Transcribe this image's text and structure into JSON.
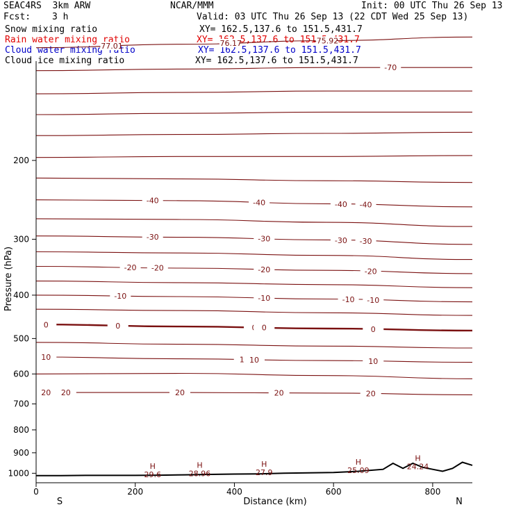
{
  "header": {
    "model": "SEAC4RS  3km ARW",
    "center": "NCAR/MMM",
    "init": "Init: 00 UTC Thu 26 Sep 13",
    "fcst_label": "Fcst:",
    "fcst_value": "3 h",
    "valid": "Valid: 03 UTC Thu 26 Sep 13 (22 CDT Wed 25 Sep 13)"
  },
  "fields": [
    {
      "name": "Snow mixing ratio",
      "xy": "XY= 162.5,137.6 to 151.5,431.7",
      "color": "#000000"
    },
    {
      "name": "Rain water mixing ratio",
      "xy": "XY= 162.5,137.6 to 151.5,431.7",
      "color": "#e00000"
    },
    {
      "name": "Cloud water mixing ratio",
      "xy": "XY= 162.5,137.6 to 151.5,431.7",
      "color": "#0000c8"
    },
    {
      "name": "Cloud ice mixing ratio",
      "xy": "XY= 162.5,137.6 to 151.5,431.7",
      "color": "#000000"
    }
  ],
  "chart_data": {
    "type": "line",
    "xlabel": "Distance (km)",
    "ylabel": "Pressure (hPa)",
    "xlim": [
      0,
      880
    ],
    "ylim": [
      1050,
      100
    ],
    "y_scale": "log-pressure",
    "x_ticks": [
      0,
      200,
      400,
      600,
      800
    ],
    "y_ticks": [
      100,
      200,
      300,
      400,
      500,
      600,
      700,
      800,
      900,
      1000
    ],
    "x_end_labels": {
      "left": "S",
      "right": "N"
    },
    "contour_color": "#7a1010",
    "isotherms": [
      {
        "level": -77.01,
        "pressure": [
          112,
          110,
          108,
          106
        ],
        "labels": [
          {
            "text": "-77.01",
            "x": 150
          },
          {
            "text": "-76.17",
            "x": 390
          },
          {
            "text": "-75.92",
            "x": 585
          }
        ]
      },
      {
        "level": -70,
        "pressure": [
          126,
          125,
          124,
          124
        ],
        "labels": [
          {
            "text": "-70",
            "x": 715
          }
        ]
      },
      {
        "level": -65,
        "pressure": [
          142,
          141,
          140,
          140
        ],
        "labels": []
      },
      {
        "level": -60,
        "pressure": [
          158,
          157,
          156,
          156
        ],
        "labels": []
      },
      {
        "level": -55,
        "pressure": [
          176,
          175,
          174,
          173
        ],
        "labels": []
      },
      {
        "level": -50,
        "pressure": [
          197,
          196,
          196,
          195
        ],
        "labels": []
      },
      {
        "level": -45,
        "pressure": [
          219,
          220,
          222,
          224
        ],
        "labels": []
      },
      {
        "level": -40,
        "pressure": [
          245,
          246,
          250,
          254
        ],
        "labels": [
          {
            "text": "-40",
            "x": 235
          },
          {
            "text": "-40",
            "x": 450
          },
          {
            "text": "-40",
            "x": 615
          },
          {
            "text": "-40",
            "x": 665
          }
        ]
      },
      {
        "level": -35,
        "pressure": [
          270,
          271,
          275,
          281
        ],
        "labels": []
      },
      {
        "level": -30,
        "pressure": [
          295,
          297,
          301,
          308
        ],
        "labels": [
          {
            "text": "-30",
            "x": 235
          },
          {
            "text": "-30",
            "x": 460
          },
          {
            "text": "-30",
            "x": 615
          },
          {
            "text": "-30",
            "x": 665
          }
        ]
      },
      {
        "level": -25,
        "pressure": [
          320,
          322,
          326,
          333
        ],
        "labels": []
      },
      {
        "level": -20,
        "pressure": [
          345,
          348,
          352,
          358
        ],
        "labels": [
          {
            "text": "-20",
            "x": 190
          },
          {
            "text": "-20",
            "x": 245
          },
          {
            "text": "-20",
            "x": 460
          },
          {
            "text": "-20",
            "x": 675
          }
        ]
      },
      {
        "level": -15,
        "pressure": [
          372,
          375,
          379,
          385
        ],
        "labels": []
      },
      {
        "level": -10,
        "pressure": [
          400,
          403,
          408,
          414
        ],
        "labels": [
          {
            "text": "-10",
            "x": 170
          },
          {
            "text": "-10",
            "x": 460
          },
          {
            "text": "-10",
            "x": 630
          },
          {
            "text": "-10",
            "x": 680
          }
        ]
      },
      {
        "level": -5,
        "pressure": [
          430,
          433,
          438,
          444
        ],
        "labels": []
      },
      {
        "level": 0,
        "pressure": [
          465,
          470,
          475,
          480
        ],
        "labels": [
          {
            "text": "0",
            "x": 20
          },
          {
            "text": "0",
            "x": 165
          },
          {
            "text": "0",
            "x": 440
          },
          {
            "text": "0",
            "x": 460
          },
          {
            "text": "0",
            "x": 680
          }
        ],
        "bold": true
      },
      {
        "level": 5,
        "pressure": [
          510,
          515,
          520,
          525
        ],
        "labels": []
      },
      {
        "level": 10,
        "pressure": [
          550,
          555,
          560,
          565
        ],
        "labels": [
          {
            "text": "10",
            "x": 20
          },
          {
            "text": "10",
            "x": 420
          },
          {
            "text": "10",
            "x": 440
          },
          {
            "text": "10",
            "x": 680
          }
        ]
      },
      {
        "level": 15,
        "pressure": [
          600,
          598,
          605,
          615
        ],
        "labels": []
      },
      {
        "level": 20,
        "pressure": [
          660,
          660,
          662,
          668
        ],
        "labels": [
          {
            "text": "20",
            "x": 20
          },
          {
            "text": "20",
            "x": 60
          },
          {
            "text": "20",
            "x": 290
          },
          {
            "text": "20",
            "x": 490
          },
          {
            "text": "20",
            "x": 675
          }
        ]
      }
    ],
    "surface_highs": [
      {
        "label": "H",
        "value": "29.6",
        "x": 235
      },
      {
        "label": "H",
        "value": "28.96",
        "x": 330
      },
      {
        "label": "H",
        "value": "27.9",
        "x": 460
      },
      {
        "label": "H",
        "value": "25.09",
        "x": 650
      },
      {
        "label": "H",
        "value": "24.24",
        "x": 770
      }
    ],
    "terrain": {
      "x": [
        0,
        50,
        100,
        150,
        200,
        250,
        300,
        350,
        400,
        450,
        500,
        550,
        600,
        650,
        700,
        720,
        740,
        760,
        780,
        800,
        820,
        840,
        860,
        880
      ],
      "pressure": [
        1012,
        1012,
        1011,
        1011,
        1011,
        1010,
        1008,
        1006,
        1004,
        1003,
        1000,
        998,
        996,
        990,
        980,
        950,
        975,
        950,
        970,
        980,
        990,
        975,
        945,
        960
      ]
    }
  }
}
